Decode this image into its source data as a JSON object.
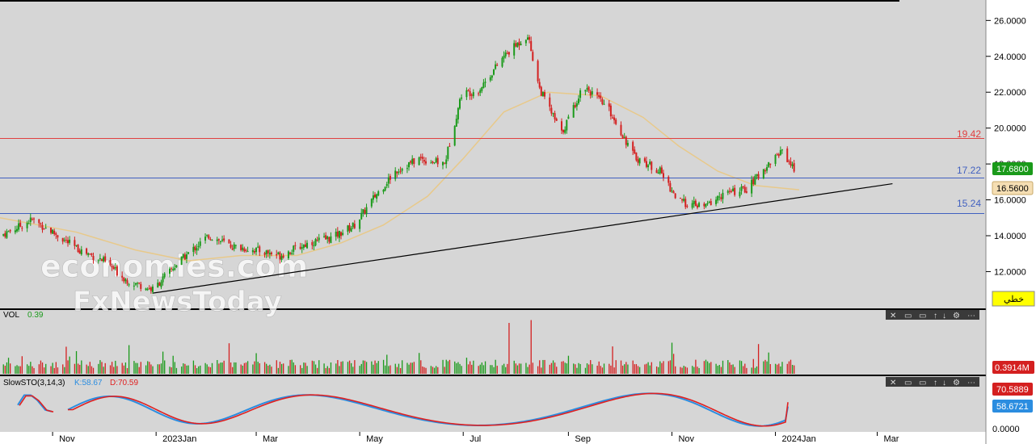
{
  "colors": {
    "background": "#d6d6d6",
    "axis_background": "#ffffff",
    "bull": "#1a9a1a",
    "bear": "#d42020",
    "ma": "#e8c98a",
    "trendline": "#000000",
    "resistance": "#e04040",
    "support": "#4060c0",
    "stoch_k": "#2b8de0",
    "stoch_d": "#e02020"
  },
  "price_panel": {
    "price_labels": [
      "26.0000",
      "24.0000",
      "22.0000",
      "20.0000",
      "18.0000",
      "16.0000",
      "14.0000",
      "12.0000"
    ],
    "current_price_tag": "17.6800",
    "ma_value_tag": "16.5600",
    "line_label_19": "19.42",
    "line_label_17": "17.22",
    "line_label_15": "15.24",
    "tool_button": "خطي",
    "watermark_1": "economies.com",
    "watermark_2": "FxNewsToday"
  },
  "volume_panel": {
    "label": "VOL",
    "value": "0.39",
    "current_tag": "0.3914M"
  },
  "stoch_panel": {
    "label": "SlowSTO(3,14,3)",
    "k_text": "K:58.67",
    "d_text": "D:70.59",
    "d_tag": "70.5889",
    "k_tag": "58.6721",
    "axis_zero": "0.0000"
  },
  "time_axis": {
    "labels": [
      "Nov",
      "2023Jan",
      "Mar",
      "May",
      "Jul",
      "Sep",
      "Nov",
      "2024Jan",
      "Mar"
    ]
  },
  "chart_data": {
    "type": "candlestick",
    "symbol": "",
    "x_labels": [
      "Nov",
      "2023Jan",
      "Mar",
      "May",
      "Jul",
      "Sep",
      "Nov",
      "2024Jan",
      "Mar"
    ],
    "ylim": [
      10.4,
      26.6
    ],
    "horizontal_lines": [
      19.42,
      17.22,
      15.24
    ],
    "close_path": [
      {
        "x": "2022-10-01",
        "y": 14.0
      },
      {
        "x": "2022-10-10",
        "y": 14.4
      },
      {
        "x": "2022-10-20",
        "y": 14.9
      },
      {
        "x": "2022-11-01",
        "y": 14.2
      },
      {
        "x": "2022-11-15",
        "y": 13.3
      },
      {
        "x": "2022-12-01",
        "y": 12.6
      },
      {
        "x": "2022-12-15",
        "y": 11.5
      },
      {
        "x": "2022-12-30",
        "y": 11.0
      },
      {
        "x": "2023-01-15",
        "y": 12.6
      },
      {
        "x": "2023-02-01",
        "y": 14.0
      },
      {
        "x": "2023-02-15",
        "y": 13.4
      },
      {
        "x": "2023-03-01",
        "y": 13.2
      },
      {
        "x": "2023-03-15",
        "y": 12.9
      },
      {
        "x": "2023-04-01",
        "y": 13.6
      },
      {
        "x": "2023-04-15",
        "y": 13.9
      },
      {
        "x": "2023-04-28",
        "y": 14.6
      },
      {
        "x": "2023-05-10",
        "y": 16.2
      },
      {
        "x": "2023-05-22",
        "y": 17.6
      },
      {
        "x": "2023-06-05",
        "y": 18.3
      },
      {
        "x": "2023-06-20",
        "y": 18.0
      },
      {
        "x": "2023-06-30",
        "y": 21.9
      },
      {
        "x": "2023-07-10",
        "y": 22.1
      },
      {
        "x": "2023-07-25",
        "y": 24.0
      },
      {
        "x": "2023-08-08",
        "y": 25.2
      },
      {
        "x": "2023-08-15",
        "y": 22.2
      },
      {
        "x": "2023-08-28",
        "y": 19.7
      },
      {
        "x": "2023-09-10",
        "y": 22.4
      },
      {
        "x": "2023-09-25",
        "y": 21.0
      },
      {
        "x": "2023-10-10",
        "y": 18.4
      },
      {
        "x": "2023-10-25",
        "y": 17.6
      },
      {
        "x": "2023-11-05",
        "y": 15.9
      },
      {
        "x": "2023-11-20",
        "y": 15.6
      },
      {
        "x": "2023-12-01",
        "y": 16.3
      },
      {
        "x": "2023-12-15",
        "y": 16.6
      },
      {
        "x": "2023-12-28",
        "y": 18.0
      },
      {
        "x": "2024-01-05",
        "y": 18.8
      },
      {
        "x": "2024-01-12",
        "y": 17.68
      }
    ],
    "moving_average": [
      {
        "x": "2022-10-01",
        "y": 15.0
      },
      {
        "x": "2022-11-15",
        "y": 14.2
      },
      {
        "x": "2022-12-20",
        "y": 13.2
      },
      {
        "x": "2023-01-20",
        "y": 12.6
      },
      {
        "x": "2023-02-20",
        "y": 12.9
      },
      {
        "x": "2023-03-25",
        "y": 12.9
      },
      {
        "x": "2023-04-20",
        "y": 13.6
      },
      {
        "x": "2023-05-15",
        "y": 14.6
      },
      {
        "x": "2023-06-10",
        "y": 16.2
      },
      {
        "x": "2023-07-01",
        "y": 18.3
      },
      {
        "x": "2023-07-25",
        "y": 20.9
      },
      {
        "x": "2023-08-20",
        "y": 22.0
      },
      {
        "x": "2023-09-20",
        "y": 21.8
      },
      {
        "x": "2023-10-15",
        "y": 20.6
      },
      {
        "x": "2023-11-05",
        "y": 19.0
      },
      {
        "x": "2023-11-28",
        "y": 17.6
      },
      {
        "x": "2023-12-20",
        "y": 16.8
      },
      {
        "x": "2024-01-15",
        "y": 16.56
      }
    ],
    "trendline": [
      {
        "x": "2022-12-30",
        "y": 10.8
      },
      {
        "x": "2024-03-10",
        "y": 16.9
      }
    ],
    "volume_spikes": [
      {
        "x": "2023-07-28",
        "y": 0.9
      },
      {
        "x": "2023-08-10",
        "y": 0.95
      },
      {
        "x": "2023-11-01",
        "y": 0.55
      }
    ],
    "stochastic": {
      "k_last": 58.67,
      "d_last": 70.59
    }
  }
}
